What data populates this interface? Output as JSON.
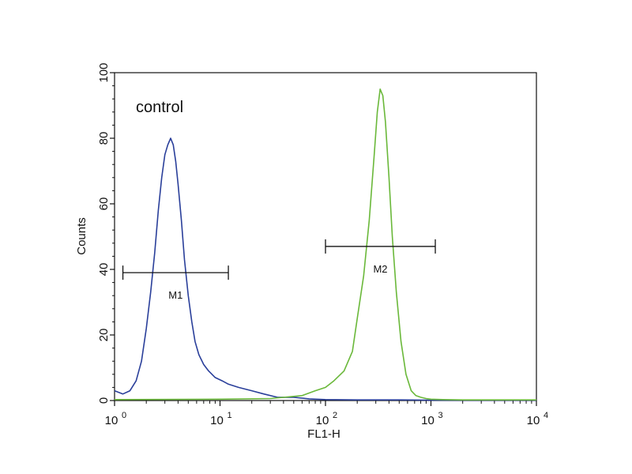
{
  "chart_data": {
    "type": "line",
    "xlabel": "FL1-H",
    "ylabel": "Counts",
    "xscale": "log",
    "xlim": [
      1,
      10000
    ],
    "ylim": [
      0,
      100
    ],
    "grid": false,
    "x_ticks": [
      {
        "value": 1,
        "base": "10",
        "exp": "0"
      },
      {
        "value": 10,
        "base": "10",
        "exp": "1"
      },
      {
        "value": 100,
        "base": "10",
        "exp": "2"
      },
      {
        "value": 1000,
        "base": "10",
        "exp": "3"
      },
      {
        "value": 10000,
        "base": "10",
        "exp": "4"
      }
    ],
    "y_ticks": [
      "0",
      "20",
      "40",
      "60",
      "80",
      "100"
    ],
    "annotation": "control",
    "series": [
      {
        "color": "#2a3f9a",
        "x": [
          1.0,
          1.2,
          1.4,
          1.6,
          1.8,
          2.0,
          2.2,
          2.4,
          2.6,
          2.8,
          3.0,
          3.2,
          3.4,
          3.5,
          3.6,
          3.8,
          4.0,
          4.3,
          4.6,
          5.0,
          5.4,
          5.8,
          6.3,
          7.0,
          7.8,
          9.0,
          10.5,
          12,
          15,
          20,
          26,
          35,
          50,
          70,
          100,
          200,
          500,
          1000,
          2000,
          5000,
          10000
        ],
        "y": [
          3,
          2,
          3,
          6,
          12,
          22,
          33,
          45,
          58,
          68,
          75,
          78,
          80,
          79,
          78,
          73,
          66,
          55,
          43,
          32,
          24,
          18,
          14,
          11,
          9,
          7,
          6,
          5,
          4,
          3,
          2,
          1,
          1,
          0.5,
          0.3,
          0.2,
          0.2,
          0.1,
          0.1,
          0.1,
          0.1
        ]
      },
      {
        "color": "#6ab83a",
        "x": [
          1.0,
          10,
          30,
          60,
          80,
          100,
          120,
          150,
          180,
          200,
          230,
          260,
          290,
          310,
          330,
          350,
          370,
          400,
          430,
          470,
          520,
          580,
          650,
          720,
          800,
          900,
          1000,
          1300,
          2000,
          5000,
          10000
        ],
        "y": [
          0.3,
          0.4,
          0.6,
          1.5,
          3,
          4,
          6,
          9,
          15,
          25,
          38,
          55,
          75,
          88,
          95,
          93,
          85,
          68,
          50,
          33,
          18,
          8,
          3,
          1.5,
          1,
          0.6,
          0.4,
          0.3,
          0.2,
          0.2,
          0.2
        ]
      }
    ],
    "markers": [
      {
        "label": "M1",
        "x_range": [
          1.2,
          12
        ],
        "y": 39
      },
      {
        "label": "M2",
        "x_range": [
          100,
          1100
        ],
        "y": 47
      }
    ]
  }
}
